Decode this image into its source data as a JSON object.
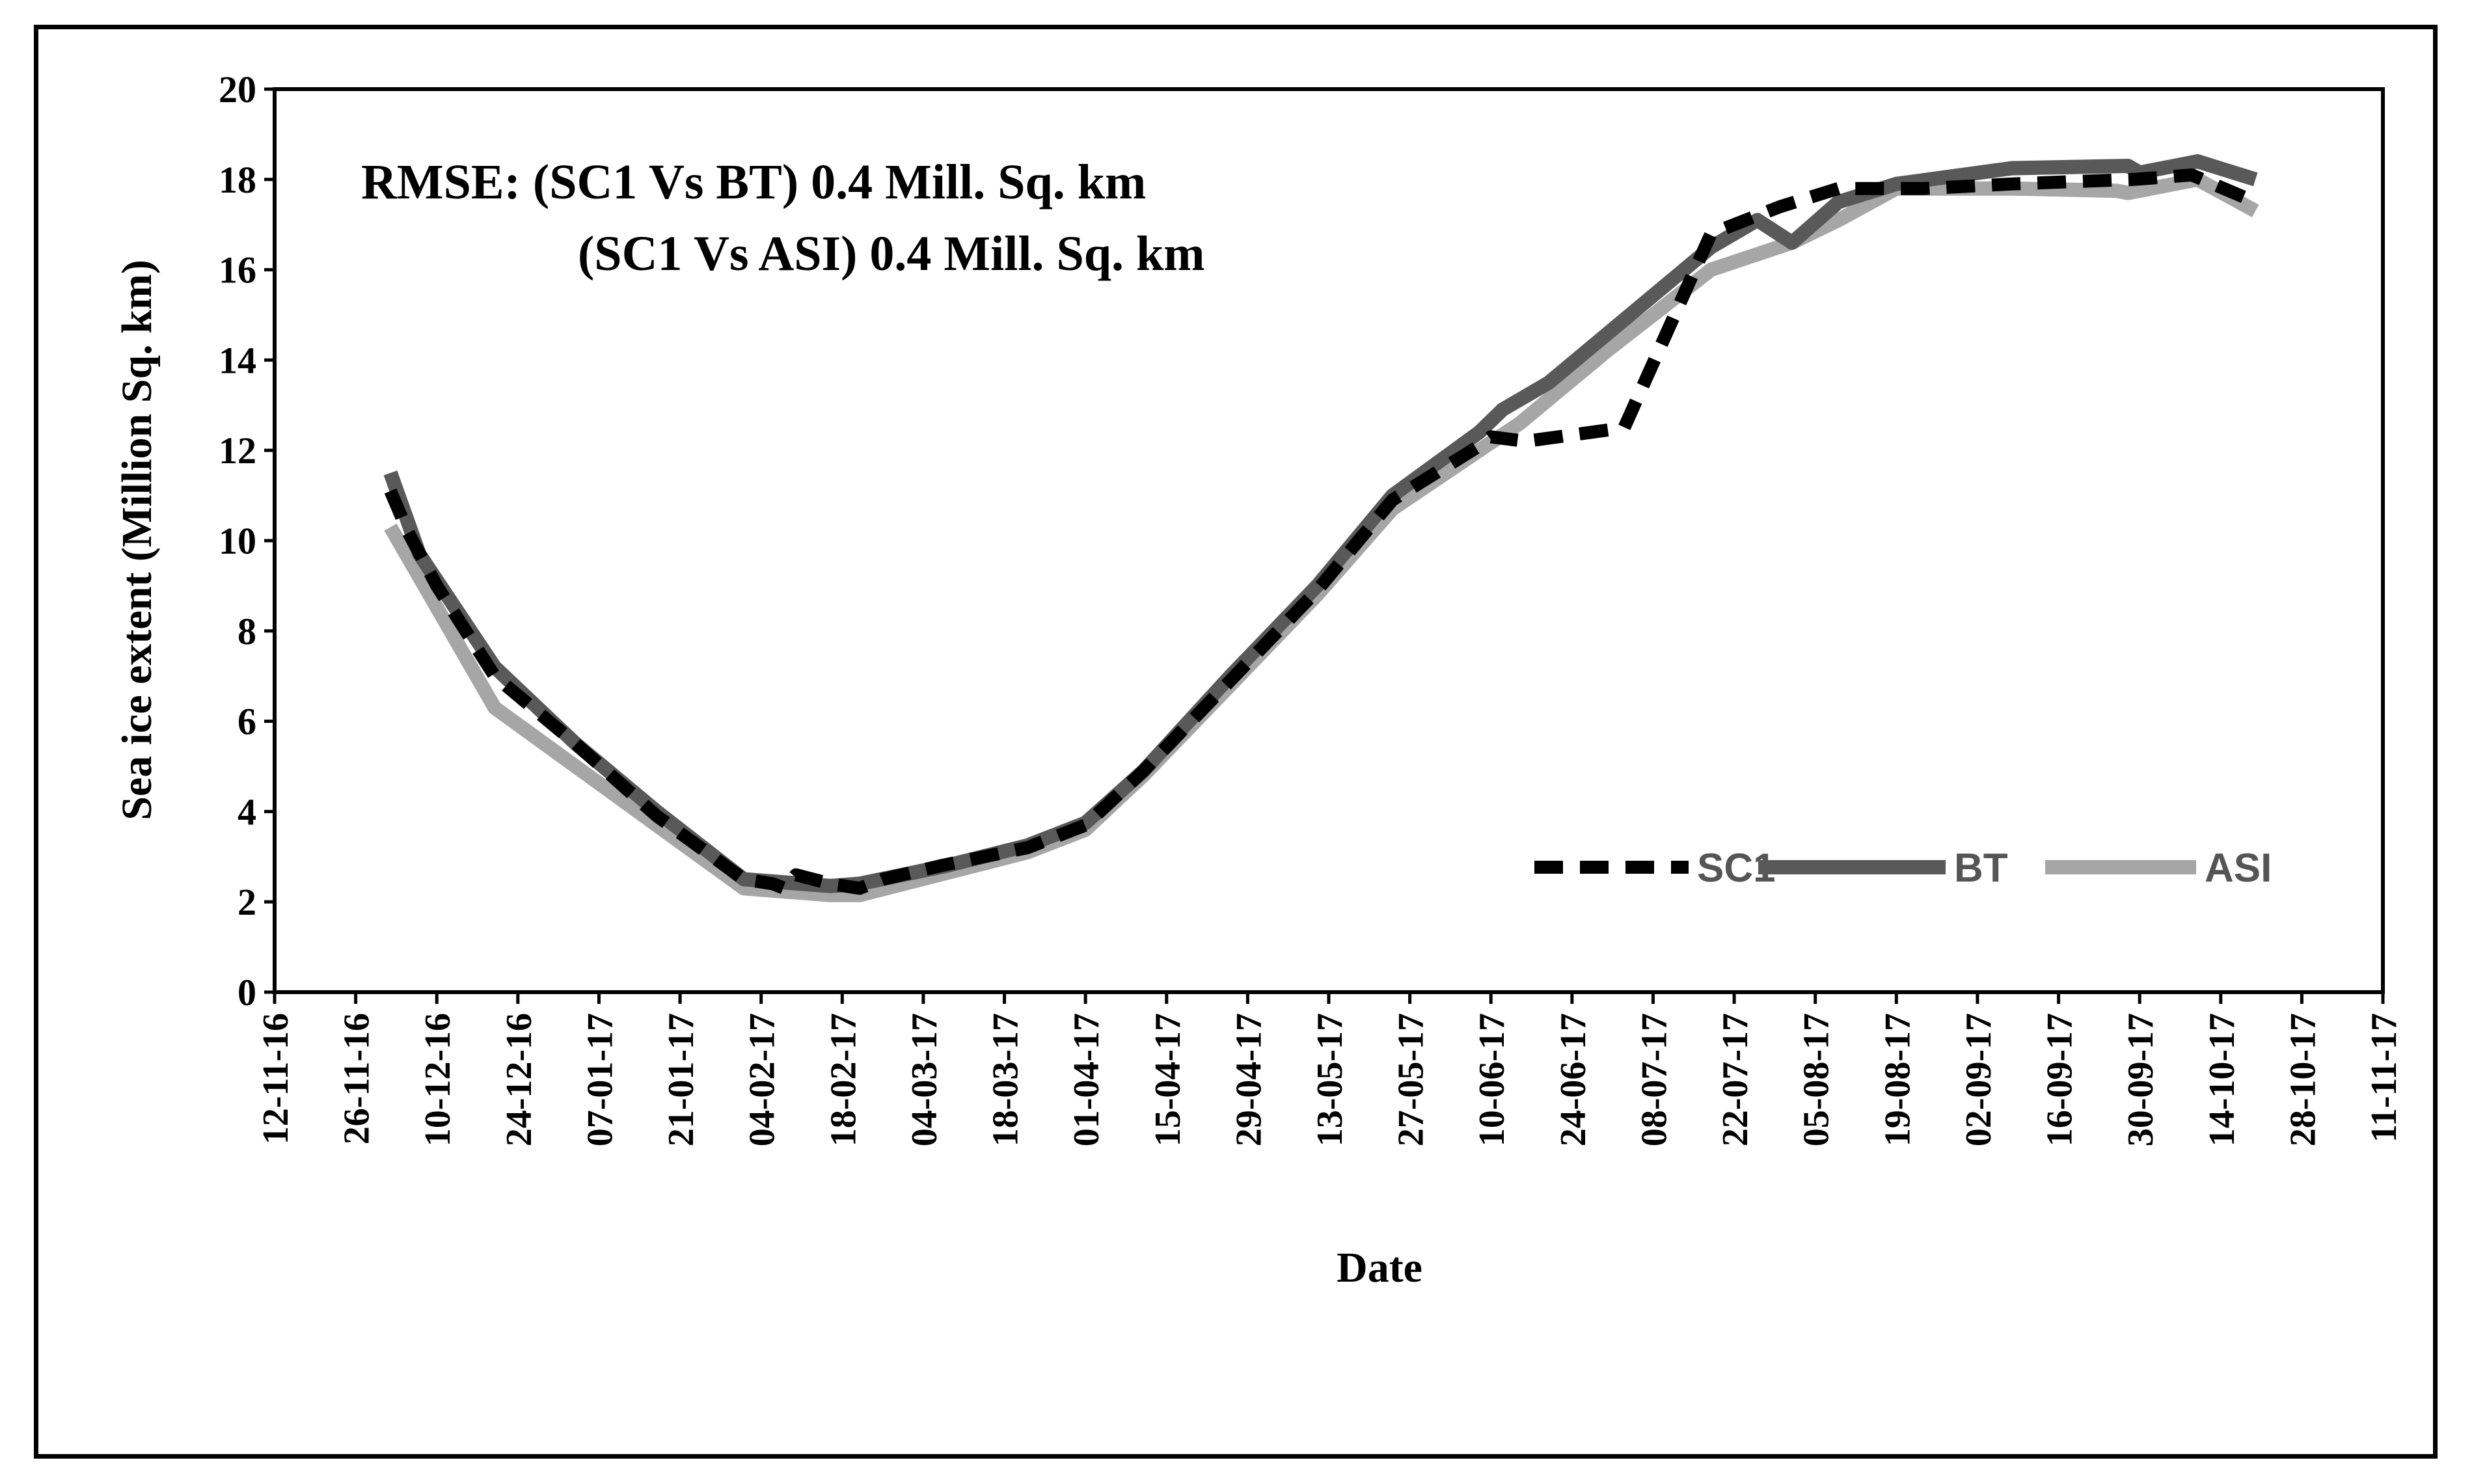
{
  "chart_data": {
    "type": "line",
    "title": "",
    "xlabel": "Date",
    "ylabel": "Sea ice extent (Million Sq. km)",
    "ylim": [
      0,
      20
    ],
    "yticks": [
      0,
      2,
      4,
      6,
      8,
      10,
      12,
      14,
      16,
      18,
      20
    ],
    "xlim_days": [
      0,
      364
    ],
    "xtick_labels": [
      "12-11-16",
      "26-11-16",
      "10-12-16",
      "24-12-16",
      "07-01-17",
      "21-01-17",
      "04-02-17",
      "18-02-17",
      "04-03-17",
      "18-03-17",
      "01-04-17",
      "15-04-17",
      "29-04-17",
      "13-05-17",
      "27-05-17",
      "10-06-17",
      "24-06-17",
      "08-07-17",
      "22-07-17",
      "05-08-17",
      "19-08-17",
      "02-09-17",
      "16-09-17",
      "30-09-17",
      "14-10-17",
      "28-10-17",
      "11-11-17"
    ],
    "xtick_step_days": 14,
    "x_unit": "days since 12-11-16",
    "annotations": [
      "RMSE: (SC1 Vs BT) 0.4 Mill. Sq. km",
      "(SC1 Vs ASI) 0.4 Mill. Sq. km"
    ],
    "legend_position": "bottom-right",
    "series": [
      {
        "name": "SC1",
        "color": "#000000",
        "style": "dashed",
        "x": [
          20,
          23,
          28,
          38,
          52,
          66,
          81,
          86,
          88,
          90,
          96,
          101,
          103,
          105,
          115,
          130,
          140,
          150,
          165,
          180,
          193,
          208,
          210,
          216,
          233,
          248,
          260,
          270,
          285,
          300,
          310,
          321,
          331,
          342
        ],
        "y": [
          11.1,
          10.2,
          9.0,
          7.0,
          5.5,
          3.9,
          2.5,
          2.4,
          2.3,
          2.6,
          2.4,
          2.3,
          2.4,
          2.5,
          2.8,
          3.2,
          3.7,
          4.9,
          6.9,
          8.9,
          10.9,
          12.1,
          12.3,
          12.2,
          12.5,
          16.8,
          17.4,
          17.8,
          17.8,
          17.9,
          17.95,
          18.0,
          18.1,
          17.5
        ]
      },
      {
        "name": "BT",
        "color": "#595959",
        "style": "solid",
        "x": [
          20,
          25,
          38,
          52,
          66,
          81,
          91,
          96,
          101,
          116,
          130,
          140,
          150,
          165,
          180,
          193,
          208,
          212,
          220,
          234,
          248,
          256,
          262,
          270,
          280,
          300,
          320,
          322,
          332,
          342
        ],
        "y": [
          11.5,
          9.7,
          7.2,
          5.5,
          4.0,
          2.5,
          2.4,
          2.35,
          2.4,
          2.8,
          3.25,
          3.75,
          4.9,
          7.0,
          9.0,
          11.0,
          12.4,
          12.9,
          13.5,
          15.0,
          16.5,
          17.1,
          16.6,
          17.5,
          17.9,
          18.25,
          18.3,
          18.15,
          18.4,
          18.0
        ]
      },
      {
        "name": "ASI",
        "color": "#a6a6a6",
        "style": "solid",
        "x": [
          20,
          38,
          81,
          91,
          96,
          101,
          130,
          140,
          150,
          165,
          180,
          193,
          208,
          215,
          230,
          248,
          262,
          270,
          280,
          300,
          318,
          320,
          332,
          342
        ],
        "y": [
          10.3,
          6.3,
          2.3,
          2.2,
          2.15,
          2.15,
          3.1,
          3.6,
          4.8,
          6.8,
          8.8,
          10.7,
          12.0,
          12.6,
          14.2,
          16.0,
          16.6,
          17.1,
          17.8,
          17.8,
          17.75,
          17.7,
          18.0,
          17.3
        ]
      }
    ]
  }
}
